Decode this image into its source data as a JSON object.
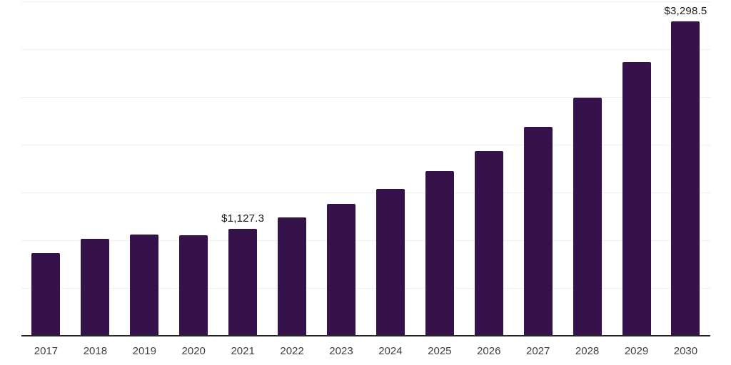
{
  "chart_data": {
    "type": "bar",
    "title": "",
    "xlabel": "",
    "ylabel": "",
    "categories": [
      "2017",
      "2018",
      "2019",
      "2020",
      "2021",
      "2022",
      "2023",
      "2024",
      "2025",
      "2026",
      "2027",
      "2028",
      "2029",
      "2030"
    ],
    "values": [
      870,
      1020,
      1065,
      1058,
      1127.3,
      1250,
      1388,
      1545,
      1730,
      1940,
      2193,
      2500,
      2874,
      3298.5
    ],
    "data_labels": [
      {
        "category": "2021",
        "text": "$1,127.3"
      },
      {
        "category": "2030",
        "text": "$3,298.5"
      }
    ],
    "ylim": [
      0,
      3500
    ],
    "gridline_interval": 500,
    "grid": true,
    "legend_position": "none",
    "bar_color": "#36124B",
    "axis_line_color": "#262626",
    "gridline_color": "#efefef",
    "tick_label_color": "#404040",
    "data_label_color": "#1a1a1a",
    "background_color": "#ffffff"
  }
}
